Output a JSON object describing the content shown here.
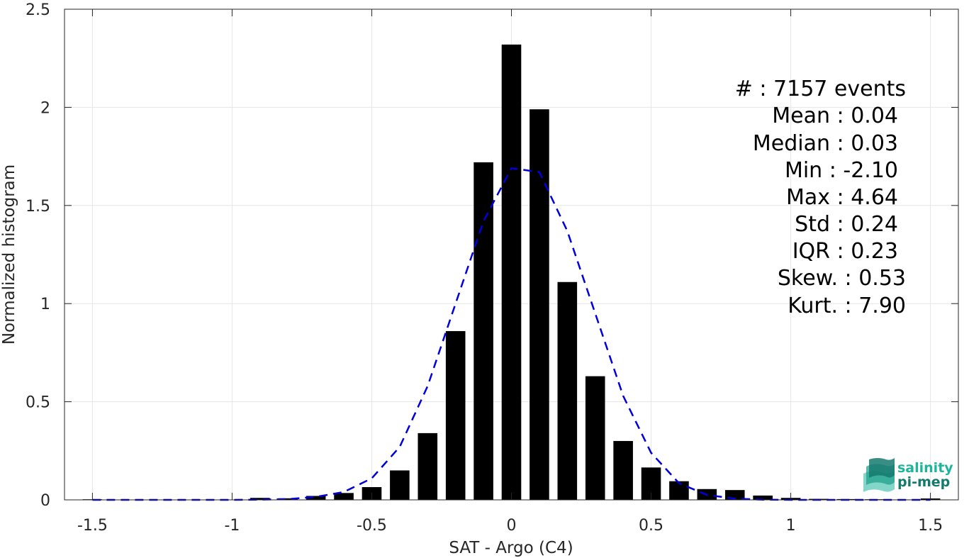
{
  "chart_data": {
    "type": "bar",
    "xlabel": "SAT - Argo (C4)",
    "ylabel": "Normalized histogram",
    "xlim": [
      -1.6,
      1.6
    ],
    "ylim": [
      0,
      2.5
    ],
    "grid": true,
    "xticks": [
      {
        "value": -1.5,
        "label": "-1.5"
      },
      {
        "value": -1,
        "label": "-1"
      },
      {
        "value": -0.5,
        "label": "-0.5"
      },
      {
        "value": 0,
        "label": "0"
      },
      {
        "value": 0.5,
        "label": "0.5"
      },
      {
        "value": 1,
        "label": "1"
      },
      {
        "value": 1.5,
        "label": "1.5"
      }
    ],
    "yticks": [
      {
        "value": 0,
        "label": "0"
      },
      {
        "value": 0.5,
        "label": "0.5"
      },
      {
        "value": 1,
        "label": "1"
      },
      {
        "value": 1.5,
        "label": "1.5"
      },
      {
        "value": 2,
        "label": "2"
      },
      {
        "value": 2.5,
        "label": "2.5"
      }
    ],
    "bar_width": 0.07,
    "bar_color": "#000000",
    "bars": {
      "x": [
        -1.5,
        -0.9,
        -0.8,
        -0.7,
        -0.6,
        -0.5,
        -0.4,
        -0.3,
        -0.2,
        -0.1,
        0.0,
        0.1,
        0.2,
        0.3,
        0.4,
        0.5,
        0.6,
        0.7,
        0.8,
        0.9,
        1.0,
        1.1,
        1.2,
        1.3,
        1.4,
        1.5
      ],
      "y": [
        0.003,
        0.01,
        0.008,
        0.02,
        0.035,
        0.065,
        0.15,
        0.34,
        0.86,
        1.72,
        2.32,
        1.99,
        1.11,
        0.63,
        0.3,
        0.165,
        0.095,
        0.055,
        0.05,
        0.022,
        0.01,
        0.005,
        0.004,
        0.003,
        0.002,
        0.007
      ]
    },
    "fit_curve": {
      "style": "dashed",
      "color": "#0000dd",
      "x": [
        -1.5,
        -1.4,
        -1.3,
        -1.2,
        -1.1,
        -1.0,
        -0.9,
        -0.8,
        -0.7,
        -0.6,
        -0.5,
        -0.4,
        -0.3,
        -0.2,
        -0.1,
        0.0,
        0.1,
        0.2,
        0.3,
        0.4,
        0.5,
        0.6,
        0.7,
        0.8,
        0.9,
        1.0,
        1.1,
        1.2,
        1.3,
        1.4,
        1.5
      ],
      "y": [
        0,
        0,
        0,
        0,
        0,
        0,
        0.001,
        0.004,
        0.015,
        0.04,
        0.11,
        0.27,
        0.58,
        1.0,
        1.42,
        1.69,
        1.67,
        1.37,
        0.95,
        0.53,
        0.24,
        0.085,
        0.025,
        0.006,
        0.001,
        0,
        0,
        0,
        0,
        0,
        0
      ]
    }
  },
  "stats": [
    {
      "label": "#  : 7157 events"
    },
    {
      "label": "Mean : 0.04"
    },
    {
      "label": "Median : 0.03"
    },
    {
      "label": "Min : -2.10"
    },
    {
      "label": "Max : 4.64"
    },
    {
      "label": "Std : 0.24"
    },
    {
      "label": "IQR : 0.23"
    },
    {
      "label": "Skew. : 0.53"
    },
    {
      "label": "Kurt. : 7.90"
    }
  ],
  "logo": {
    "line1": "salinity",
    "line2": "pi-mep",
    "color1": "#1fb59a",
    "color2": "#157a6e"
  }
}
